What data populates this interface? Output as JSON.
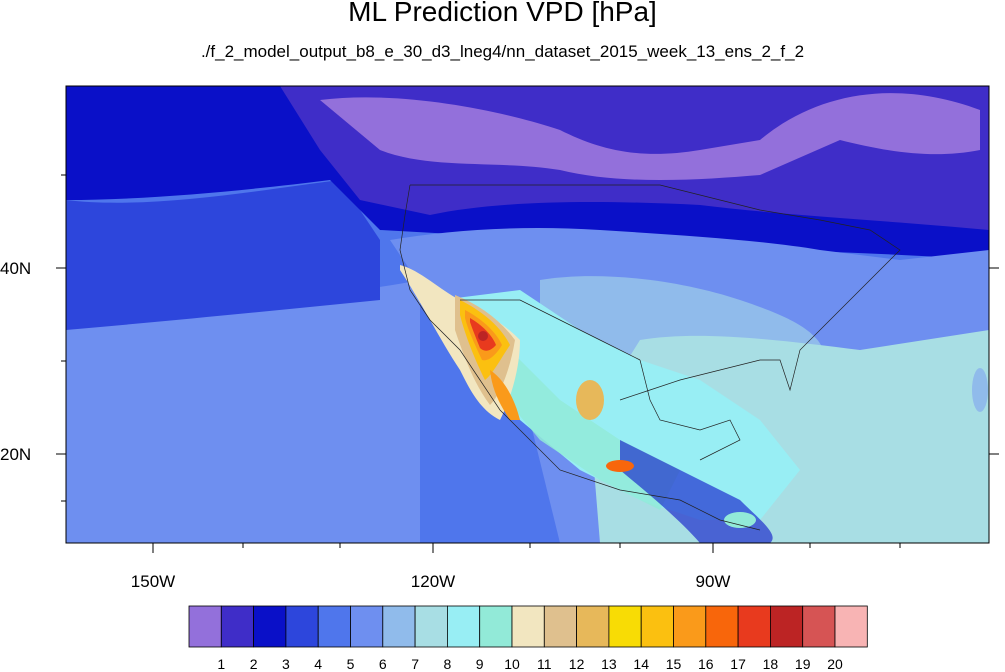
{
  "title": "ML Prediction VPD [hPa]",
  "subtitle": "./f_2_model_output_b8_e_30_d3_lneg4/nn_dataset_2015_week_13_ens_2_f_2",
  "axes": {
    "lat_labels": [
      "40N",
      "20N"
    ],
    "lon_labels": [
      "150W",
      "120W",
      "90W"
    ]
  },
  "colorbar": {
    "colors": [
      "#9370DB",
      "#3F2DC8",
      "#0A10C8",
      "#2D46DC",
      "#4F76EC",
      "#6E8FF0",
      "#90BBEB",
      "#A8DEE4",
      "#98EEF4",
      "#92EAD8",
      "#F2E6C0",
      "#DFC08E",
      "#E7B85A",
      "#F8DC05",
      "#FBC010",
      "#FA9A1A",
      "#F8660B",
      "#E83A1E",
      "#BC2424",
      "#D65454",
      "#F8B4B4"
    ],
    "labels": [
      "1",
      "2",
      "3",
      "4",
      "5",
      "6",
      "7",
      "8",
      "9",
      "10",
      "11",
      "12",
      "13",
      "14",
      "15",
      "16",
      "17",
      "18",
      "19",
      "20"
    ]
  }
}
